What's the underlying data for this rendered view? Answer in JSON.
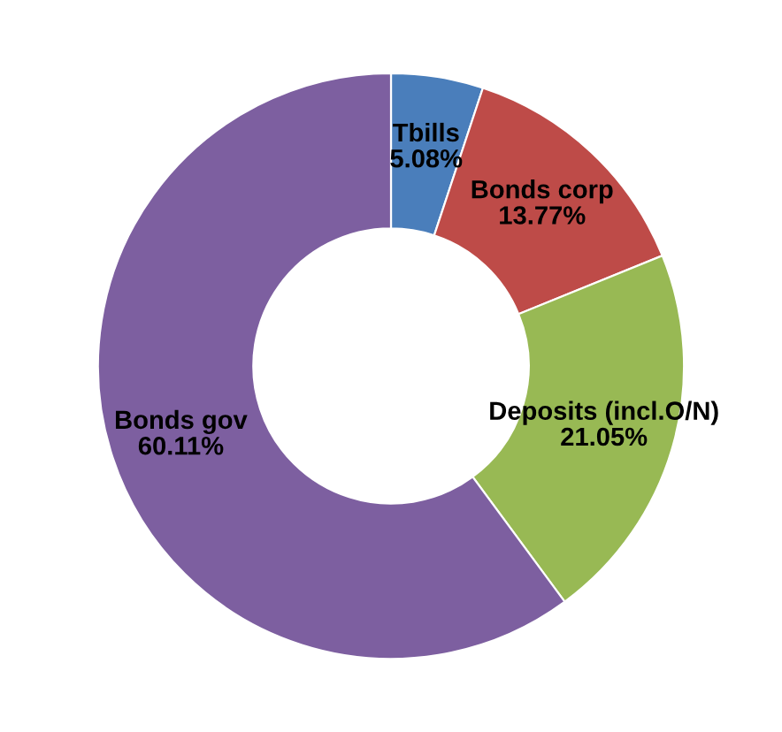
{
  "chart_data": {
    "type": "donut",
    "categories": [
      "Tbills",
      "Bonds corp",
      "Deposits (incl.O/N)",
      "Bonds gov"
    ],
    "values": [
      5.08,
      13.77,
      21.05,
      60.11
    ],
    "colors": [
      "#4a7ebb",
      "#be4b48",
      "#98b954",
      "#7d5fa0"
    ],
    "value_labels": [
      "5.08%",
      "13.77%",
      "21.05%",
      "60.11%"
    ],
    "legend": false
  }
}
